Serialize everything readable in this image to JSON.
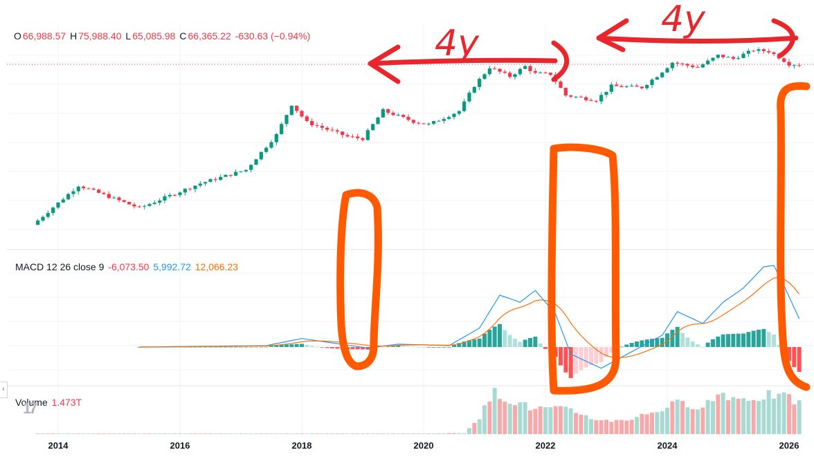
{
  "ohlc": {
    "o_label": "O",
    "o": "66,988.57",
    "h_label": "H",
    "h": "75,988.40",
    "l_label": "L",
    "l": "65,085.98",
    "c_label": "C",
    "c": "66,365.22",
    "change": "-630.63 (−0.94%)"
  },
  "macd_legend": {
    "name": "MACD 12 26 close 9",
    "hist": "-6,073.50",
    "macd": "5,992.72",
    "signal": "12,066.23"
  },
  "volume_legend": {
    "name": "Volume",
    "value": "1.473T"
  },
  "x_axis": [
    "2014",
    "2016",
    "2018",
    "2020",
    "2022",
    "2024",
    "2026"
  ],
  "annotations": {
    "left_span": "4y",
    "right_span": "4y"
  },
  "colors": {
    "up": "#089981",
    "down": "#f23645",
    "macd": "#2196f3",
    "signal": "#ff6d00",
    "hist_up_strong": "#26a69a",
    "hist_up_weak": "#b2dfdb",
    "hist_down_strong": "#ff5252",
    "hist_down_weak": "#ffcdd2",
    "annotation_red": "#e8262b",
    "annotation_orange": "#ff5a00"
  },
  "icons": {
    "collapse": "chevron-left-icon",
    "logo": "tradingview-logo"
  },
  "logo_text": "17",
  "collapse_glyph": "‹",
  "chart_data": {
    "type": "candlestick",
    "timeframe": "monthly",
    "x_start": "2013-09",
    "x_end": "2026-03",
    "y_scale": "log",
    "keypoints_price": [
      [
        "2013-09",
        130
      ],
      [
        "2014-06",
        600
      ],
      [
        "2015-06",
        250
      ],
      [
        "2016-06",
        650
      ],
      [
        "2017-03",
        1100
      ],
      [
        "2017-09",
        4300
      ],
      [
        "2017-12",
        14000
      ],
      [
        "2018-03",
        7000
      ],
      [
        "2018-11",
        4000
      ],
      [
        "2019-02",
        3700
      ],
      [
        "2019-06",
        11000
      ],
      [
        "2019-12",
        7200
      ],
      [
        "2020-03",
        6400
      ],
      [
        "2020-09",
        10800
      ],
      [
        "2020-12",
        29000
      ],
      [
        "2021-03",
        58800
      ],
      [
        "2021-07",
        41500
      ],
      [
        "2021-10",
        61300
      ],
      [
        "2021-12",
        46300
      ],
      [
        "2022-03",
        45500
      ],
      [
        "2022-06",
        19900
      ],
      [
        "2022-12",
        16500
      ],
      [
        "2023-03",
        28500
      ],
      [
        "2023-09",
        27000
      ],
      [
        "2023-12",
        42300
      ],
      [
        "2024-03",
        71300
      ],
      [
        "2024-08",
        59000
      ],
      [
        "2024-12",
        93400
      ],
      [
        "2025-03",
        82500
      ],
      [
        "2025-07",
        115700
      ],
      [
        "2025-10",
        110000
      ],
      [
        "2025-12",
        87500
      ],
      [
        "2026-02",
        67000
      ],
      [
        "2026-03",
        66365
      ]
    ],
    "keypoints_macd": [
      [
        "2015-05",
        0
      ],
      [
        "2017-06",
        300
      ],
      [
        "2018-01",
        1800
      ],
      [
        "2019-02",
        -200
      ],
      [
        "2019-08",
        600
      ],
      [
        "2020-06",
        300
      ],
      [
        "2020-12",
        4000
      ],
      [
        "2021-04",
        11000
      ],
      [
        "2021-08",
        9500
      ],
      [
        "2021-11",
        12000
      ],
      [
        "2022-03",
        7000
      ],
      [
        "2022-06",
        -1500
      ],
      [
        "2022-12",
        -4500
      ],
      [
        "2023-06",
        -1000
      ],
      [
        "2023-12",
        2500
      ],
      [
        "2024-03",
        7500
      ],
      [
        "2024-08",
        5000
      ],
      [
        "2024-12",
        9500
      ],
      [
        "2025-04",
        12500
      ],
      [
        "2025-08",
        17000
      ],
      [
        "2025-10",
        17300
      ],
      [
        "2025-12",
        13000
      ],
      [
        "2026-03",
        6000
      ]
    ],
    "keypoints_volume": [
      [
        "2013-09",
        0.01
      ],
      [
        "2019-12",
        0.02
      ],
      [
        "2020-09",
        0.05
      ],
      [
        "2020-12",
        0.8
      ],
      [
        "2021-03",
        1.9
      ],
      [
        "2021-07",
        1.5
      ],
      [
        "2021-10",
        1.2
      ],
      [
        "2022-06",
        1.1
      ],
      [
        "2022-12",
        0.6
      ],
      [
        "2023-06",
        0.7
      ],
      [
        "2024-03",
        1.4
      ],
      [
        "2024-08",
        1.3
      ],
      [
        "2024-12",
        1.9
      ],
      [
        "2025-03",
        1.6
      ],
      [
        "2025-07",
        1.7
      ],
      [
        "2025-10",
        1.8
      ],
      [
        "2026-01",
        1.6
      ],
      [
        "2026-03",
        1.473
      ]
    ],
    "volume_unit": "T",
    "last_close": 66365.22,
    "macd_params": {
      "fast": 12,
      "slow": 26,
      "signal": 9,
      "source": "close"
    }
  }
}
